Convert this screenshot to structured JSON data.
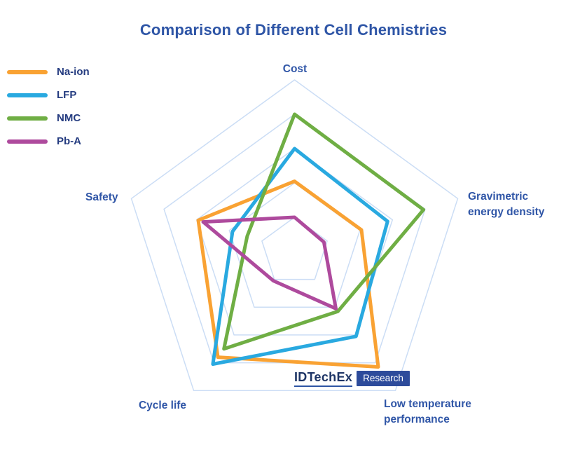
{
  "title": "Comparison of Different Cell Chemistries",
  "legend": {
    "items": [
      {
        "id": "na-ion",
        "label": "Na-ion",
        "color": "#F9A233"
      },
      {
        "id": "lfp",
        "label": "LFP",
        "color": "#29A9E0"
      },
      {
        "id": "nmc",
        "label": "NMC",
        "color": "#6FAE44"
      },
      {
        "id": "pb-a",
        "label": "Pb-A",
        "color": "#AE4A9D"
      }
    ]
  },
  "logo": {
    "brand": "IDTechEx",
    "suffix": "Research"
  },
  "chart_data": {
    "type": "radar",
    "title": "Comparison of Different Cell Chemistries",
    "axes": [
      {
        "id": "cost",
        "label": "Cost"
      },
      {
        "id": "grav",
        "label": "Gravimetric energy density"
      },
      {
        "id": "lowtemp",
        "label": "Low temperature performance"
      },
      {
        "id": "cycle",
        "label": "Cycle life"
      },
      {
        "id": "safety",
        "label": "Safety"
      }
    ],
    "scale": {
      "min": 0,
      "max": 5,
      "rings": [
        1,
        2,
        3,
        4,
        5
      ]
    },
    "grid_color": "#CBDDF5",
    "legend_position": "top-left",
    "series": [
      {
        "id": "na-ion",
        "name": "Na-ion",
        "color": "#F9A233",
        "values": [
          2.05,
          2.05,
          4.15,
          3.8,
          2.95
        ]
      },
      {
        "id": "lfp",
        "name": "LFP",
        "color": "#29A9E0",
        "values": [
          3.0,
          2.85,
          3.05,
          4.05,
          1.9
        ]
      },
      {
        "id": "nmc",
        "name": "NMC",
        "color": "#6FAE44",
        "values": [
          4.0,
          3.95,
          2.15,
          3.5,
          1.45
        ]
      },
      {
        "id": "pb-a",
        "name": "Pb-A",
        "color": "#AE4A9D",
        "values": [
          1.0,
          0.9,
          2.05,
          1.05,
          2.8
        ]
      }
    ]
  }
}
